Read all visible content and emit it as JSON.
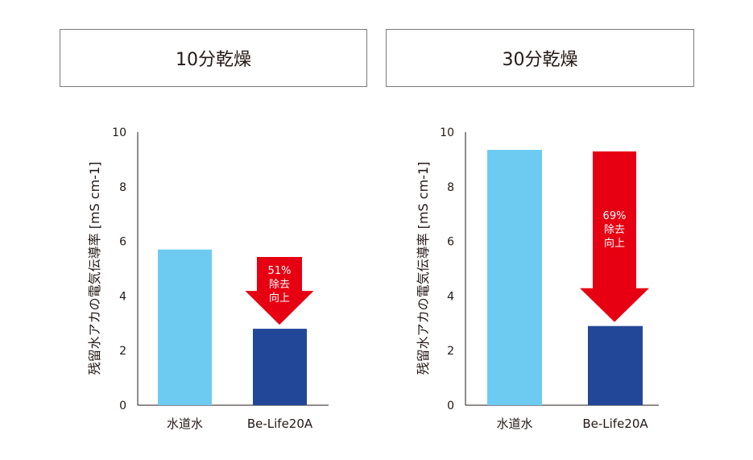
{
  "panels": [
    {
      "title": "10分乾燥"
    },
    {
      "title": "30分乾燥"
    }
  ],
  "colors": {
    "tap_water": "#6DCBF2",
    "be_life": "#234798",
    "arrow": "#E60012",
    "axis": "#231815"
  },
  "chart_data": [
    {
      "type": "bar",
      "title": "10分乾燥",
      "categories": [
        "水道水",
        "Be-Life20A"
      ],
      "values": [
        5.7,
        2.8
      ],
      "ylabel": "残留水アカの電気伝導率 [mS cm-1]",
      "ylim": [
        0,
        10
      ],
      "yticks": [
        0,
        2,
        4,
        6,
        8,
        10
      ],
      "grid": false,
      "annotation": {
        "lines": [
          "51%",
          "除去",
          "向上"
        ]
      }
    },
    {
      "type": "bar",
      "title": "30分乾燥",
      "categories": [
        "水道水",
        "Be-Life20A"
      ],
      "values": [
        9.35,
        2.9
      ],
      "ylabel": "残留水アカの電気伝導率 [mS cm-1]",
      "ylim": [
        0,
        10
      ],
      "yticks": [
        0,
        2,
        4,
        6,
        8,
        10
      ],
      "grid": false,
      "annotation": {
        "lines": [
          "69%",
          "除去",
          "向上"
        ]
      }
    }
  ]
}
